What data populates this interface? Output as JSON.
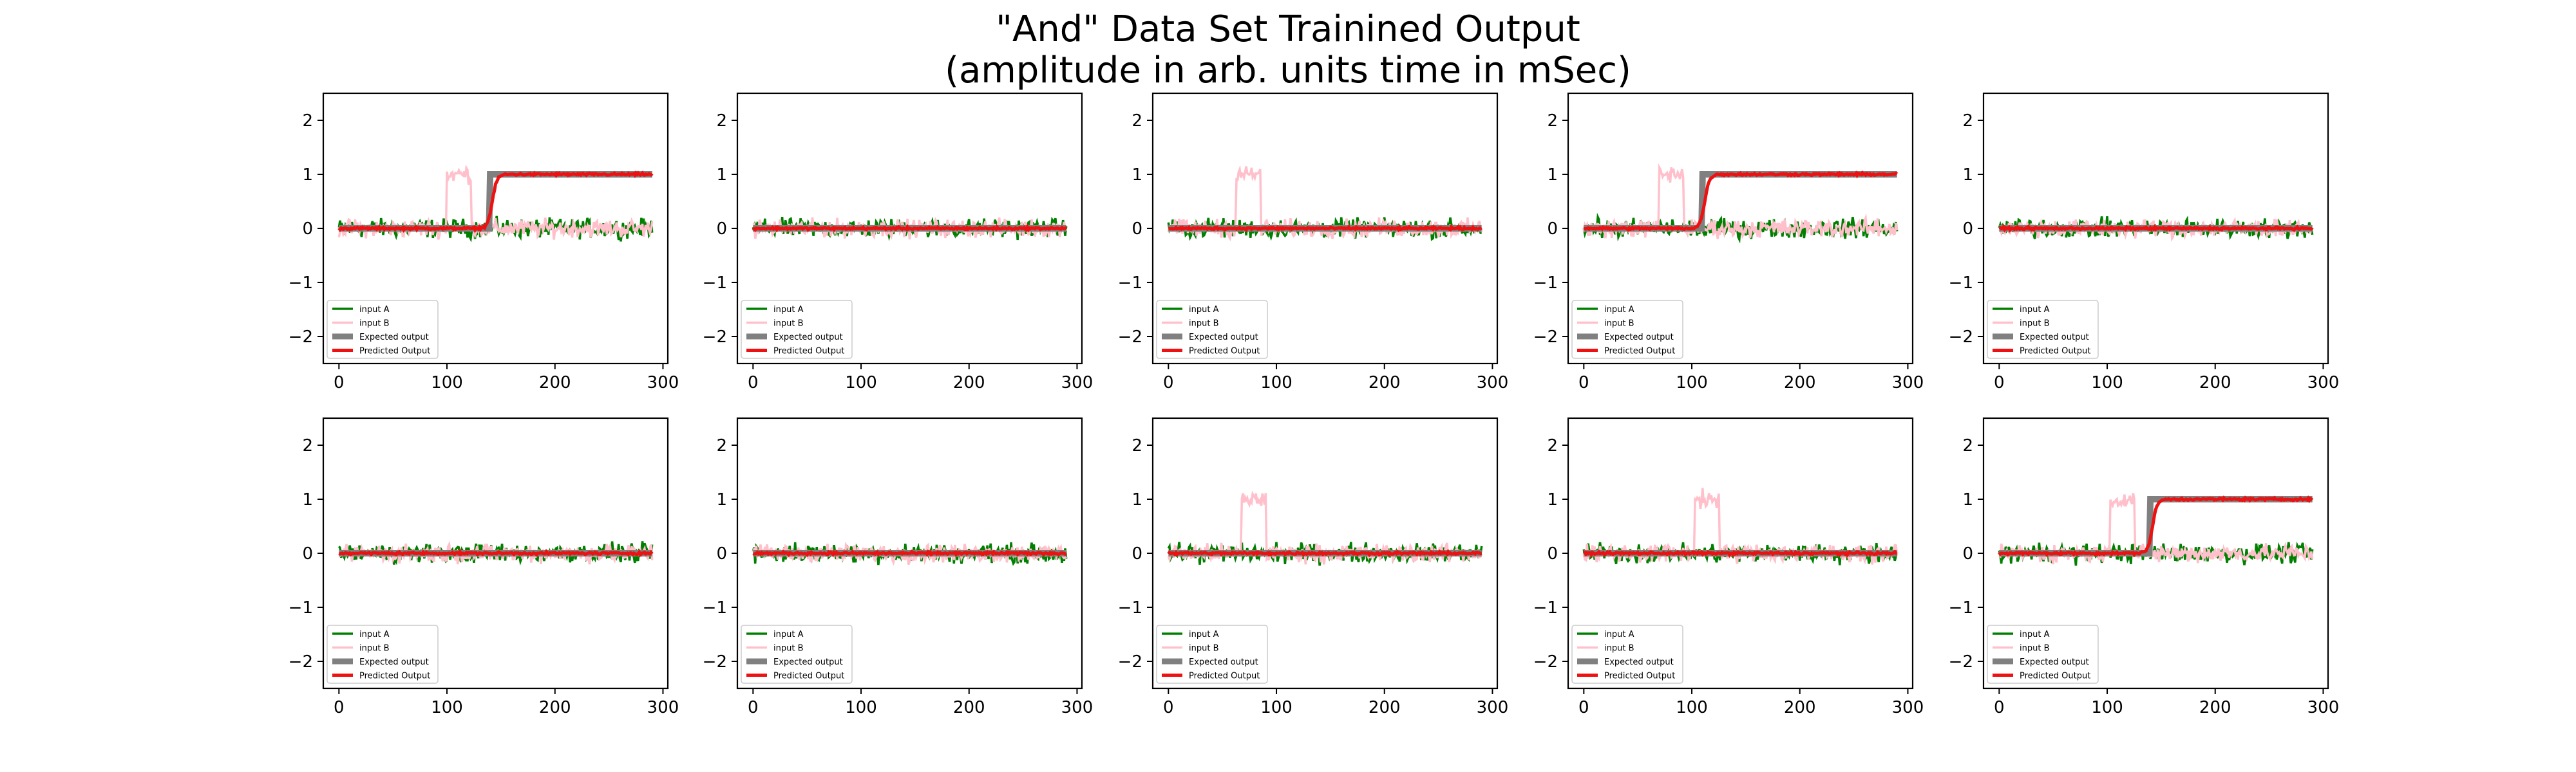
{
  "figure": {
    "title_line1": "\"And\" Data Set Trainined Output",
    "title_line2": "(amplitude in arb. units time in mSec)"
  },
  "colors": {
    "input_a": "#008000",
    "input_b": "#ffc0cb",
    "expected": "#808080",
    "predicted": "#ee1111"
  },
  "chart_data": [
    {
      "type": "line",
      "panel": "row1-col1",
      "input_a_pulse": null,
      "input_b_pulse": [
        100,
        122
      ],
      "expected_high_from": 140,
      "xlim": [
        0,
        290
      ],
      "ylim": [
        -2.5,
        2.5
      ],
      "xticks": [
        0,
        100,
        200,
        300
      ],
      "yticks": [
        -2,
        -1,
        0,
        1,
        2
      ],
      "legend": [
        "input A",
        "input B",
        "Expected output",
        "Predicted Output"
      ],
      "legend_loc": "lower left"
    },
    {
      "type": "line",
      "panel": "row1-col2",
      "input_a_pulse": null,
      "input_b_pulse": null,
      "expected_high_from": null,
      "xlim": [
        0,
        290
      ],
      "ylim": [
        -2.5,
        2.5
      ],
      "xticks": [
        0,
        100,
        200,
        300
      ],
      "yticks": [
        -2,
        -1,
        0,
        1,
        2
      ],
      "legend": [
        "input A",
        "input B",
        "Expected output",
        "Predicted Output"
      ],
      "legend_loc": "lower left"
    },
    {
      "type": "line",
      "panel": "row1-col3",
      "input_a_pulse": null,
      "input_b_pulse": [
        63,
        85
      ],
      "expected_high_from": null,
      "xlim": [
        0,
        290
      ],
      "ylim": [
        -2.5,
        2.5
      ],
      "xticks": [
        0,
        100,
        200,
        300
      ],
      "yticks": [
        -2,
        -1,
        0,
        1,
        2
      ],
      "legend": [
        "input A",
        "input B",
        "Expected output",
        "Predicted Output"
      ],
      "legend_loc": "lower left"
    },
    {
      "type": "line",
      "panel": "row1-col4",
      "input_a_pulse": null,
      "input_b_pulse": [
        70,
        92
      ],
      "expected_high_from": 110,
      "xlim": [
        0,
        290
      ],
      "ylim": [
        -2.5,
        2.5
      ],
      "xticks": [
        0,
        100,
        200,
        300
      ],
      "yticks": [
        -2,
        -1,
        0,
        1,
        2
      ],
      "legend": [
        "input A",
        "input B",
        "Expected output",
        "Predicted Output"
      ],
      "legend_loc": "lower left"
    },
    {
      "type": "line",
      "panel": "row1-col5",
      "input_a_pulse": null,
      "input_b_pulse": null,
      "expected_high_from": null,
      "xlim": [
        0,
        290
      ],
      "ylim": [
        -2.5,
        2.5
      ],
      "xticks": [
        0,
        100,
        200,
        300
      ],
      "yticks": [
        -2,
        -1,
        0,
        1,
        2
      ],
      "legend": [
        "input A",
        "input B",
        "Expected output",
        "Predicted Output"
      ],
      "legend_loc": "lower left"
    },
    {
      "type": "line",
      "panel": "row2-col1",
      "input_a_pulse": null,
      "input_b_pulse": null,
      "expected_high_from": null,
      "xlim": [
        0,
        290
      ],
      "ylim": [
        -2.5,
        2.5
      ],
      "xticks": [
        0,
        100,
        200,
        300
      ],
      "yticks": [
        -2,
        -1,
        0,
        1,
        2
      ],
      "legend": [
        "input A",
        "input B",
        "Expected output",
        "Predicted Output"
      ],
      "legend_loc": "lower left"
    },
    {
      "type": "line",
      "panel": "row2-col2",
      "input_a_pulse": null,
      "input_b_pulse": null,
      "expected_high_from": null,
      "xlim": [
        0,
        290
      ],
      "ylim": [
        -2.5,
        2.5
      ],
      "xticks": [
        0,
        100,
        200,
        300
      ],
      "yticks": [
        -2,
        -1,
        0,
        1,
        2
      ],
      "legend": [
        "input A",
        "input B",
        "Expected output",
        "Predicted Output"
      ],
      "legend_loc": "lower left"
    },
    {
      "type": "line",
      "panel": "row2-col3",
      "input_a_pulse": null,
      "input_b_pulse": [
        68,
        90
      ],
      "expected_high_from": null,
      "xlim": [
        0,
        290
      ],
      "ylim": [
        -2.5,
        2.5
      ],
      "xticks": [
        0,
        100,
        200,
        300
      ],
      "yticks": [
        -2,
        -1,
        0,
        1,
        2
      ],
      "legend": [
        "input A",
        "input B",
        "Expected output",
        "Predicted Output"
      ],
      "legend_loc": "lower left"
    },
    {
      "type": "line",
      "panel": "row2-col4",
      "input_a_pulse": null,
      "input_b_pulse": [
        103,
        125
      ],
      "expected_high_from": null,
      "xlim": [
        0,
        290
      ],
      "ylim": [
        -2.5,
        2.5
      ],
      "xticks": [
        0,
        100,
        200,
        300
      ],
      "yticks": [
        -2,
        -1,
        0,
        1,
        2
      ],
      "legend": [
        "input A",
        "input B",
        "Expected output",
        "Predicted Output"
      ],
      "legend_loc": "lower left"
    },
    {
      "type": "line",
      "panel": "row2-col5",
      "input_a_pulse": null,
      "input_b_pulse": [
        103,
        125
      ],
      "expected_high_from": 140,
      "xlim": [
        0,
        290
      ],
      "ylim": [
        -2.5,
        2.5
      ],
      "xticks": [
        0,
        100,
        200,
        300
      ],
      "yticks": [
        -2,
        -1,
        0,
        1,
        2
      ],
      "legend": [
        "input A",
        "input B",
        "Expected output",
        "Predicted Output"
      ],
      "legend_loc": "lower left"
    }
  ]
}
